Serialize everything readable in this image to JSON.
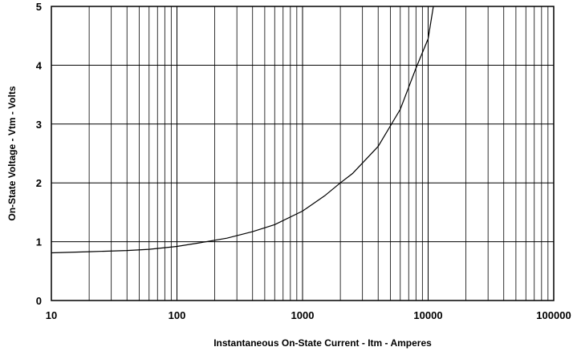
{
  "chart_data": {
    "type": "line",
    "title": "",
    "xlabel": "Instantaneous On-State Current  -  Itm  -  Amperes",
    "ylabel": "On-State Voltage  -  Vtm  -  Volts",
    "xscale": "log",
    "xlim": [
      10,
      100000
    ],
    "ylim": [
      0,
      5
    ],
    "x_tick_labels": [
      "10",
      "100",
      "1000",
      "10000",
      "100000"
    ],
    "y_tick_labels": [
      "0",
      "1",
      "2",
      "3",
      "4",
      "5"
    ],
    "grid": true,
    "series": [
      {
        "x": [
          10,
          20,
          40,
          60,
          100,
          150,
          250,
          400,
          600,
          1000,
          1500,
          2000,
          2500,
          4000,
          6000,
          8000,
          10000,
          11000
        ],
        "y": [
          0.81,
          0.83,
          0.85,
          0.87,
          0.92,
          0.98,
          1.06,
          1.17,
          1.29,
          1.52,
          1.78,
          2.0,
          2.16,
          2.62,
          3.25,
          3.95,
          4.45,
          5.0
        ]
      }
    ]
  }
}
